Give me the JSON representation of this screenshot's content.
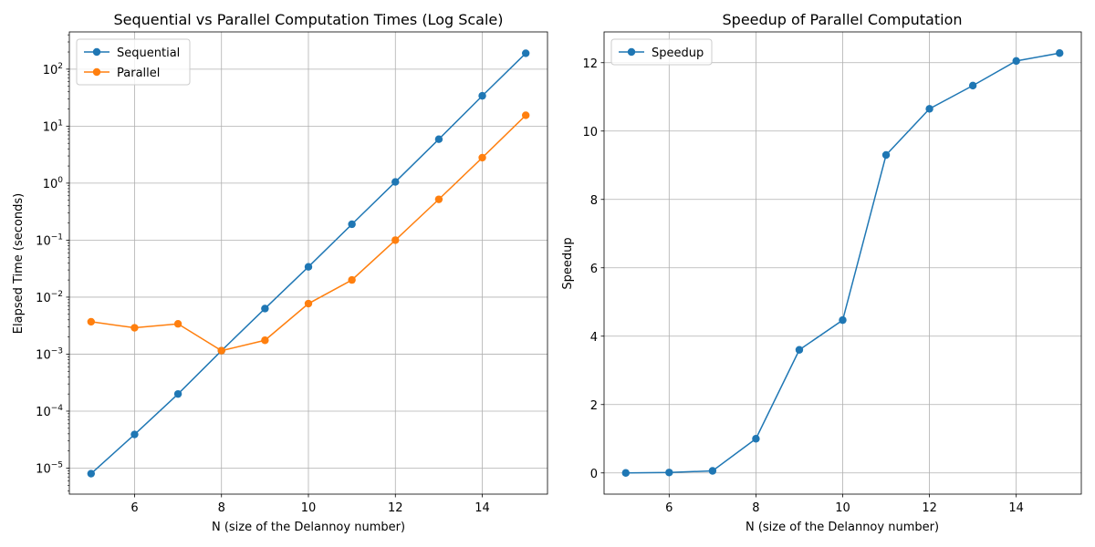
{
  "chart_data": [
    {
      "type": "line",
      "title": "Sequential vs Parallel Computation Times (Log Scale)",
      "xlabel": "N (size of the Delannoy number)",
      "ylabel": "Elapsed Time (seconds)",
      "yscale": "log",
      "x": [
        5,
        6,
        7,
        8,
        9,
        10,
        11,
        12,
        13,
        14,
        15
      ],
      "xlim": [
        4.5,
        15.5
      ],
      "ylim": [
        3.5e-06,
        450
      ],
      "xticks": [
        6,
        8,
        10,
        12,
        14
      ],
      "yticks": [
        1e-05,
        0.0001,
        0.001,
        0.01,
        0.1,
        1,
        10,
        100
      ],
      "ytick_labels": [
        {
          "base": "10",
          "exp": "−5"
        },
        {
          "base": "10",
          "exp": "−4"
        },
        {
          "base": "10",
          "exp": "−3"
        },
        {
          "base": "10",
          "exp": "−2"
        },
        {
          "base": "10",
          "exp": "−1"
        },
        {
          "base": "10",
          "exp": "0"
        },
        {
          "base": "10",
          "exp": "1"
        },
        {
          "base": "10",
          "exp": "2"
        }
      ],
      "grid": true,
      "legend": "upper-left",
      "series": [
        {
          "name": "Sequential",
          "color": "#1f77b4",
          "values": [
            8e-06,
            3.9e-05,
            0.0002,
            0.00115,
            0.0063,
            0.034,
            0.19,
            1.05,
            5.9,
            34,
            190
          ]
        },
        {
          "name": "Parallel",
          "color": "#ff7f0e",
          "values": [
            0.0037,
            0.0029,
            0.0034,
            0.00115,
            0.00175,
            0.0077,
            0.02,
            0.1,
            0.52,
            2.8,
            15.5
          ]
        }
      ]
    },
    {
      "type": "line",
      "title": "Speedup of Parallel Computation",
      "xlabel": "N (size of the Delannoy number)",
      "ylabel": "Speedup",
      "yscale": "linear",
      "x": [
        5,
        6,
        7,
        8,
        9,
        10,
        11,
        12,
        13,
        14,
        15
      ],
      "xlim": [
        4.5,
        15.5
      ],
      "ylim": [
        -0.62,
        12.9
      ],
      "xticks": [
        6,
        8,
        10,
        12,
        14
      ],
      "yticks": [
        0,
        2,
        4,
        6,
        8,
        10,
        12
      ],
      "grid": true,
      "legend": "upper-left",
      "series": [
        {
          "name": "Speedup",
          "color": "#1f77b4",
          "values": [
            0.0,
            0.013,
            0.06,
            1.0,
            3.6,
            4.47,
            9.3,
            10.65,
            11.33,
            12.05,
            12.28
          ]
        }
      ]
    }
  ]
}
